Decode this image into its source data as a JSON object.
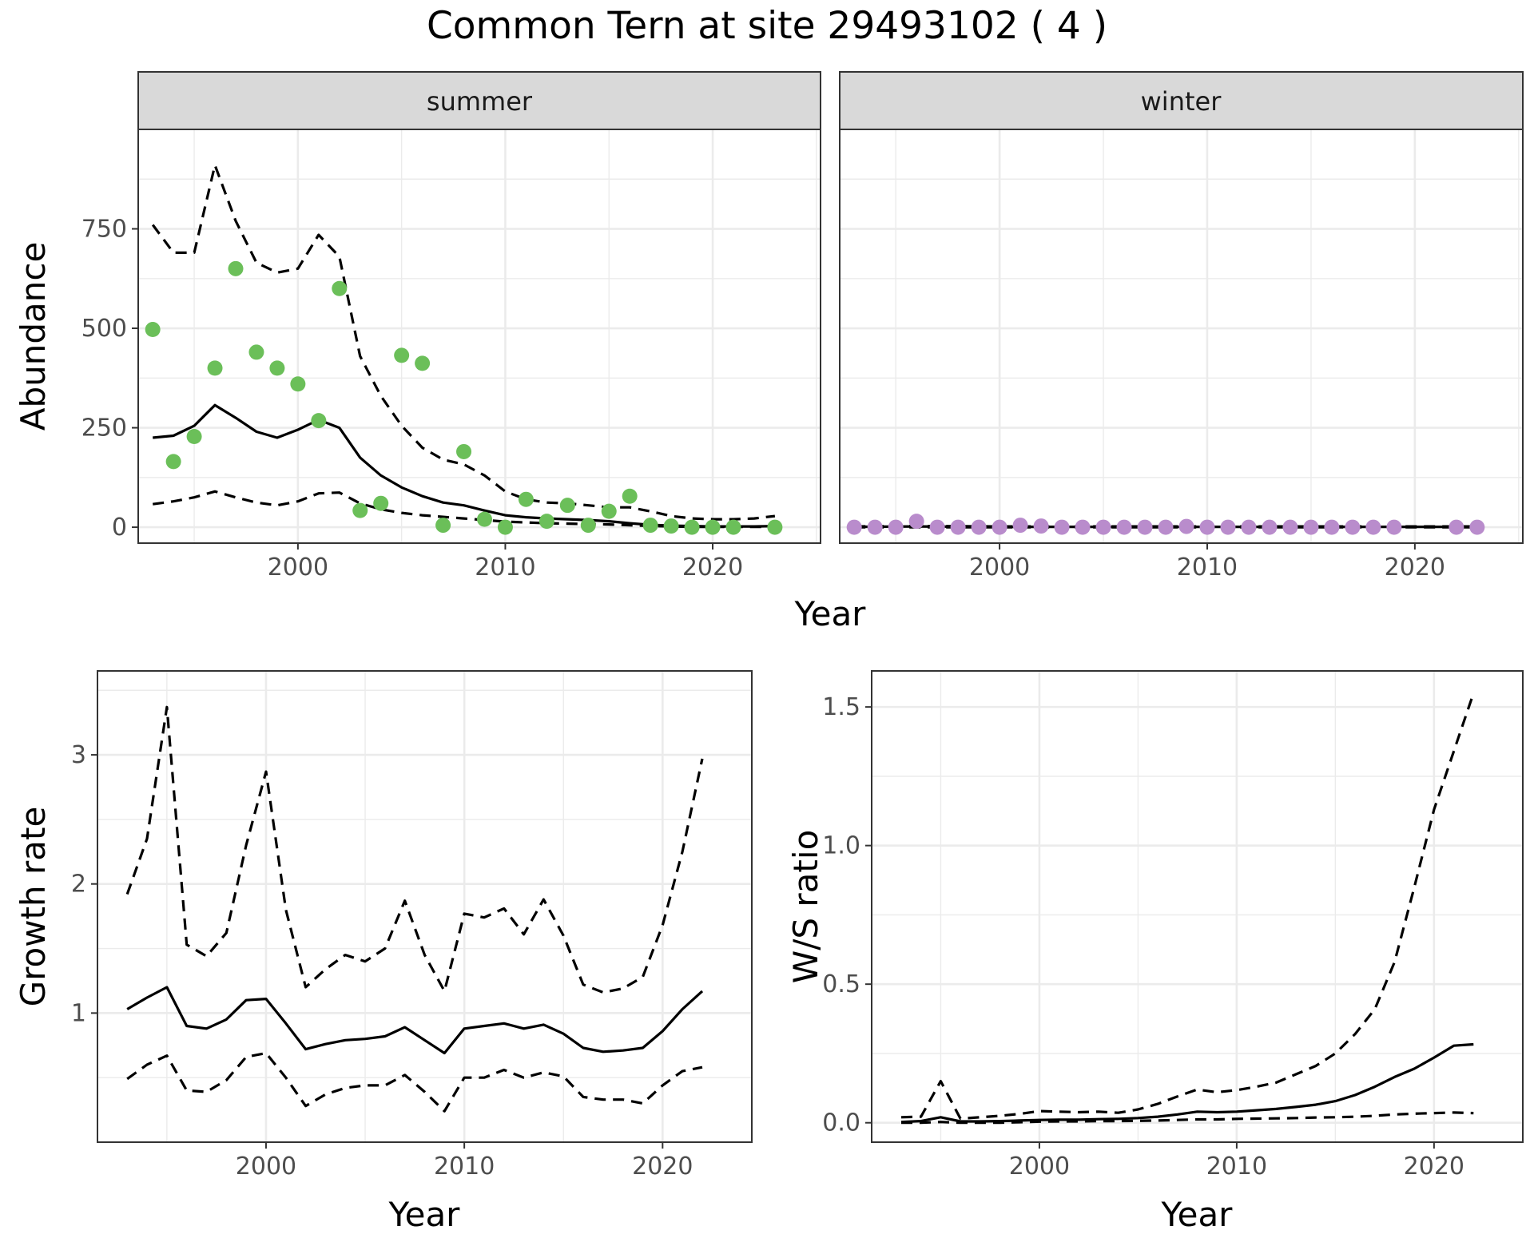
{
  "title": "Common Tern at site 29493102 ( 4 )",
  "colors": {
    "summer_points": "#6bbf59",
    "winter_points": "#b98ccc",
    "lines": "#000000",
    "strip_background": "#d9d9d9",
    "grid": "#ebebeb"
  },
  "chart_data": [
    {
      "type": "line",
      "panel": "summer",
      "strip_label": "summer",
      "ylabel": "Abundance",
      "xlabel": "Year",
      "xlim": [
        1992.3,
        2025.2
      ],
      "ylim": [
        -40,
        1000
      ],
      "x_ticks": [
        "2000",
        "2010",
        "2020"
      ],
      "y_ticks": [
        "0",
        "250",
        "500",
        "750"
      ],
      "grid": true,
      "series": [
        {
          "kind": "points",
          "x": [
            1993,
            1994,
            1995,
            1996,
            1997,
            1998,
            1999,
            2000,
            2001,
            2002,
            2003,
            2004,
            2005,
            2006,
            2007,
            2008,
            2009,
            2010,
            2011,
            2012,
            2013,
            2014,
            2015,
            2016,
            2017,
            2018,
            2019,
            2020,
            2021,
            2023
          ],
          "y": [
            497,
            165,
            228,
            400,
            650,
            440,
            400,
            360,
            268,
            600,
            42,
            60,
            432,
            412,
            5,
            190,
            20,
            0,
            70,
            15,
            55,
            5,
            40,
            78,
            5,
            3,
            0,
            0,
            0,
            0
          ]
        },
        {
          "kind": "estimate",
          "x": [
            1993,
            1994,
            1995,
            1996,
            1997,
            1998,
            1999,
            2000,
            2001,
            2002,
            2003,
            2004,
            2005,
            2006,
            2007,
            2008,
            2009,
            2010,
            2011,
            2012,
            2013,
            2014,
            2015,
            2016,
            2017,
            2018,
            2019,
            2020,
            2021,
            2022,
            2023
          ],
          "y": [
            225,
            230,
            255,
            307,
            275,
            240,
            225,
            245,
            270,
            250,
            175,
            130,
            100,
            78,
            62,
            55,
            42,
            30,
            25,
            22,
            20,
            18,
            15,
            10,
            6,
            4,
            3,
            2,
            2,
            2,
            3
          ]
        },
        {
          "kind": "upper",
          "x": [
            1993,
            1994,
            1995,
            1996,
            1997,
            1998,
            1999,
            2000,
            2001,
            2002,
            2003,
            2004,
            2005,
            2006,
            2007,
            2008,
            2009,
            2010,
            2011,
            2012,
            2013,
            2014,
            2015,
            2016,
            2017,
            2018,
            2019,
            2020,
            2021,
            2022,
            2023
          ],
          "y": [
            760,
            690,
            690,
            910,
            770,
            665,
            640,
            650,
            735,
            680,
            430,
            330,
            255,
            200,
            170,
            158,
            130,
            90,
            70,
            62,
            60,
            55,
            50,
            50,
            40,
            28,
            22,
            20,
            20,
            22,
            28
          ]
        },
        {
          "kind": "lower",
          "x": [
            1993,
            1994,
            1995,
            1996,
            1997,
            1998,
            1999,
            2000,
            2001,
            2002,
            2003,
            2004,
            2005,
            2006,
            2007,
            2008,
            2009,
            2010,
            2011,
            2012,
            2013,
            2014,
            2015,
            2016,
            2017,
            2018,
            2019,
            2020,
            2021,
            2022,
            2023
          ],
          "y": [
            58,
            65,
            75,
            90,
            75,
            62,
            55,
            65,
            85,
            87,
            60,
            45,
            36,
            30,
            26,
            22,
            18,
            14,
            12,
            10,
            9,
            8,
            7,
            5,
            3,
            2,
            1,
            1,
            1,
            1,
            1
          ]
        }
      ]
    },
    {
      "type": "line",
      "panel": "winter",
      "strip_label": "winter",
      "xlabel": "Year",
      "xlim": [
        1992.3,
        2025.2
      ],
      "ylim": [
        -40,
        1000
      ],
      "x_ticks": [
        "2000",
        "2010",
        "2020"
      ],
      "grid": true,
      "series": [
        {
          "kind": "points",
          "x": [
            1993,
            1994,
            1995,
            1996,
            1997,
            1998,
            1999,
            2000,
            2001,
            2002,
            2003,
            2004,
            2005,
            2006,
            2007,
            2008,
            2009,
            2010,
            2011,
            2012,
            2013,
            2014,
            2015,
            2016,
            2017,
            2018,
            2019,
            2022,
            2023
          ],
          "y": [
            0,
            0,
            0,
            15,
            0,
            0,
            0,
            0,
            5,
            3,
            0,
            0,
            0,
            0,
            0,
            0,
            2,
            0,
            0,
            0,
            0,
            0,
            0,
            0,
            0,
            0,
            0,
            0,
            0
          ]
        },
        {
          "kind": "estimate",
          "x": [
            1993,
            1996,
            2000,
            2005,
            2010,
            2015,
            2020,
            2023
          ],
          "y": [
            1,
            2,
            1,
            1,
            1,
            1,
            1,
            1
          ]
        },
        {
          "kind": "upper",
          "x": [
            1993,
            1996,
            2000,
            2005,
            2010,
            2015,
            2020,
            2023
          ],
          "y": [
            2,
            3,
            2,
            2,
            2,
            2,
            2,
            2
          ]
        },
        {
          "kind": "lower",
          "x": [
            1993,
            1996,
            2000,
            2005,
            2010,
            2015,
            2020,
            2023
          ],
          "y": [
            0,
            0,
            0,
            0,
            0,
            0,
            0,
            0
          ]
        }
      ]
    },
    {
      "type": "line",
      "panel": "growth",
      "ylabel": "Growth rate",
      "xlabel": "Year",
      "xlim": [
        1991.5,
        2024.5
      ],
      "ylim": [
        0.0,
        3.65
      ],
      "x_ticks": [
        "2000",
        "2010",
        "2020"
      ],
      "y_ticks": [
        "1",
        "2",
        "3"
      ],
      "grid": true,
      "series": [
        {
          "kind": "estimate",
          "x": [
            1993,
            1994,
            1995,
            1996,
            1997,
            1998,
            1999,
            2000,
            2001,
            2002,
            2003,
            2004,
            2005,
            2006,
            2007,
            2008,
            2009,
            2010,
            2011,
            2012,
            2013,
            2014,
            2015,
            2016,
            2017,
            2018,
            2019,
            2020,
            2021,
            2022
          ],
          "y": [
            1.03,
            1.12,
            1.2,
            0.9,
            0.88,
            0.95,
            1.1,
            1.11,
            0.92,
            0.72,
            0.76,
            0.79,
            0.8,
            0.82,
            0.89,
            0.79,
            0.69,
            0.88,
            0.9,
            0.92,
            0.88,
            0.91,
            0.84,
            0.73,
            0.7,
            0.71,
            0.73,
            0.86,
            1.03,
            1.17
          ]
        },
        {
          "kind": "upper",
          "x": [
            1993,
            1994,
            1995,
            1996,
            1997,
            1998,
            1999,
            2000,
            2001,
            2002,
            2003,
            2004,
            2005,
            2006,
            2007,
            2008,
            2009,
            2010,
            2011,
            2012,
            2013,
            2014,
            2015,
            2016,
            2017,
            2018,
            2019,
            2020,
            2021,
            2022
          ],
          "y": [
            1.92,
            2.35,
            3.37,
            1.53,
            1.44,
            1.62,
            2.3,
            2.87,
            1.8,
            1.2,
            1.34,
            1.45,
            1.4,
            1.5,
            1.87,
            1.45,
            1.17,
            1.77,
            1.74,
            1.81,
            1.61,
            1.88,
            1.6,
            1.22,
            1.16,
            1.19,
            1.28,
            1.68,
            2.25,
            2.97
          ]
        },
        {
          "kind": "lower",
          "x": [
            1993,
            1994,
            1995,
            1996,
            1997,
            1998,
            1999,
            2000,
            2001,
            2002,
            2003,
            2004,
            2005,
            2006,
            2007,
            2008,
            2009,
            2010,
            2011,
            2012,
            2013,
            2014,
            2015,
            2016,
            2017,
            2018,
            2019,
            2020,
            2021,
            2022
          ],
          "y": [
            0.49,
            0.6,
            0.67,
            0.4,
            0.39,
            0.48,
            0.66,
            0.69,
            0.5,
            0.28,
            0.37,
            0.42,
            0.44,
            0.44,
            0.52,
            0.39,
            0.24,
            0.5,
            0.5,
            0.56,
            0.5,
            0.54,
            0.51,
            0.35,
            0.33,
            0.33,
            0.3,
            0.44,
            0.55,
            0.58
          ]
        }
      ]
    },
    {
      "type": "line",
      "panel": "ws_ratio",
      "ylabel": "W/S ratio",
      "xlabel": "Year",
      "xlim": [
        1991.5,
        2024.5
      ],
      "ylim": [
        -0.07,
        1.63
      ],
      "x_ticks": [
        "2000",
        "2010",
        "2020"
      ],
      "y_ticks": [
        "0.0",
        "0.5",
        "1.0",
        "1.5"
      ],
      "grid": true,
      "series": [
        {
          "kind": "estimate",
          "x": [
            1993,
            1994,
            1995,
            1996,
            1997,
            1998,
            1999,
            2000,
            2001,
            2002,
            2003,
            2004,
            2005,
            2006,
            2007,
            2008,
            2009,
            2010,
            2011,
            2012,
            2013,
            2014,
            2015,
            2016,
            2017,
            2018,
            2019,
            2020,
            2021,
            2022
          ],
          "y": [
            0.003,
            0.006,
            0.02,
            0.005,
            0.005,
            0.006,
            0.008,
            0.01,
            0.011,
            0.011,
            0.013,
            0.014,
            0.017,
            0.022,
            0.03,
            0.04,
            0.038,
            0.04,
            0.045,
            0.05,
            0.057,
            0.065,
            0.078,
            0.1,
            0.13,
            0.165,
            0.195,
            0.235,
            0.278,
            0.283
          ]
        },
        {
          "kind": "upper",
          "x": [
            1993,
            1994,
            1995,
            1996,
            1997,
            1998,
            1999,
            2000,
            2001,
            2002,
            2003,
            2004,
            2005,
            2006,
            2007,
            2008,
            2009,
            2010,
            2011,
            2012,
            2013,
            2014,
            2015,
            2016,
            2017,
            2018,
            2019,
            2020,
            2021,
            2022
          ],
          "y": [
            0.02,
            0.022,
            0.15,
            0.015,
            0.02,
            0.025,
            0.032,
            0.042,
            0.04,
            0.038,
            0.04,
            0.036,
            0.048,
            0.068,
            0.095,
            0.12,
            0.11,
            0.118,
            0.13,
            0.145,
            0.175,
            0.205,
            0.25,
            0.32,
            0.41,
            0.58,
            0.85,
            1.13,
            1.34,
            1.55
          ]
        },
        {
          "kind": "lower",
          "x": [
            1993,
            1994,
            1995,
            1996,
            1997,
            1998,
            1999,
            2000,
            2001,
            2002,
            2003,
            2004,
            2005,
            2006,
            2007,
            2008,
            2009,
            2010,
            2011,
            2012,
            2013,
            2014,
            2015,
            2016,
            2017,
            2018,
            2019,
            2020,
            2021,
            2022
          ],
          "y": [
            0.0,
            0.0,
            0.003,
            0.0,
            0.0,
            0.0,
            0.002,
            0.004,
            0.005,
            0.005,
            0.006,
            0.006,
            0.007,
            0.008,
            0.01,
            0.012,
            0.012,
            0.014,
            0.015,
            0.016,
            0.017,
            0.019,
            0.02,
            0.022,
            0.025,
            0.03,
            0.033,
            0.035,
            0.037,
            0.035
          ]
        }
      ]
    }
  ]
}
